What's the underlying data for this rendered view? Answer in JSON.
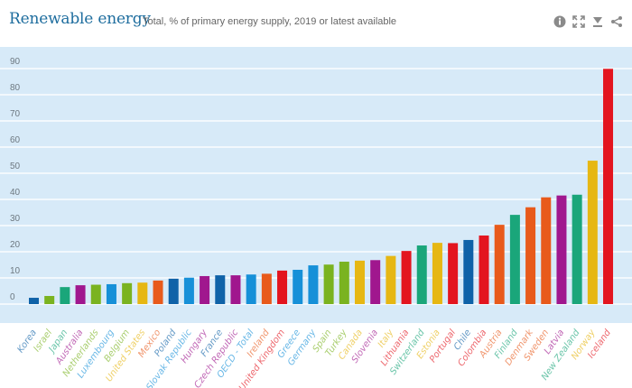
{
  "header": {
    "title": "Renewable energy",
    "subtitle": "Total, % of primary energy supply, 2019 or latest available",
    "icons": [
      "info-icon",
      "expand-icon",
      "download-icon",
      "share-icon"
    ]
  },
  "colors": {
    "plot_background": "#d7eaf8",
    "gridline": "#f2f8fd",
    "title": "#1e6d9e"
  },
  "chart_data": {
    "type": "bar",
    "title": "Renewable energy",
    "subtitle": "Total, % of primary energy supply, 2019 or latest available",
    "xlabel": "",
    "ylabel": "",
    "ylim": [
      0,
      90
    ],
    "yticks": [
      0,
      10,
      20,
      30,
      40,
      50,
      60,
      70,
      80,
      90
    ],
    "grid": true,
    "legend": "none",
    "categories": [
      "Korea",
      "Israel",
      "Japan",
      "Australia",
      "Netherlands",
      "Luxembourg",
      "Belgium",
      "United States",
      "Mexico",
      "Poland",
      "Slovak Republic",
      "Hungary",
      "France",
      "Czech Republic",
      "OECD - Total",
      "Ireland",
      "United Kingdom",
      "Greece",
      "Germany",
      "Spain",
      "Turkey",
      "Canada",
      "Slovenia",
      "Italy",
      "Lithuania",
      "Switzerland",
      "Estonia",
      "Portugal",
      "Chile",
      "Colombia",
      "Austria",
      "Finland",
      "Denmark",
      "Sweden",
      "Latvia",
      "New Zealand",
      "Norway",
      "Iceland"
    ],
    "values": [
      2.4,
      3.1,
      6.5,
      7.2,
      7.4,
      7.6,
      8.0,
      8.2,
      9.0,
      9.7,
      10.1,
      10.7,
      11.0,
      11.0,
      11.3,
      11.6,
      12.8,
      13.1,
      14.8,
      15.1,
      16.2,
      16.6,
      16.8,
      18.4,
      20.3,
      22.4,
      23.4,
      23.3,
      24.5,
      26.2,
      30.3,
      34.1,
      37.0,
      40.8,
      41.5,
      41.8,
      54.8,
      89.9
    ],
    "bar_colors": [
      "#0f62a8",
      "#7ab320",
      "#1aa67a",
      "#a0178e",
      "#7ab320",
      "#1690d8",
      "#7ab320",
      "#e6b713",
      "#e85a1b",
      "#0f62a8",
      "#1690d8",
      "#a0178e",
      "#0f62a8",
      "#a0178e",
      "#1690d8",
      "#e85a1b",
      "#e3151f",
      "#1690d8",
      "#1690d8",
      "#7ab320",
      "#7ab320",
      "#e6b713",
      "#a0178e",
      "#e6b713",
      "#e3151f",
      "#1aa67a",
      "#e6b713",
      "#e3151f",
      "#0f62a8",
      "#e3151f",
      "#e85a1b",
      "#1aa67a",
      "#e85a1b",
      "#e85a1b",
      "#a0178e",
      "#1aa67a",
      "#e6b713",
      "#e3151f"
    ]
  }
}
